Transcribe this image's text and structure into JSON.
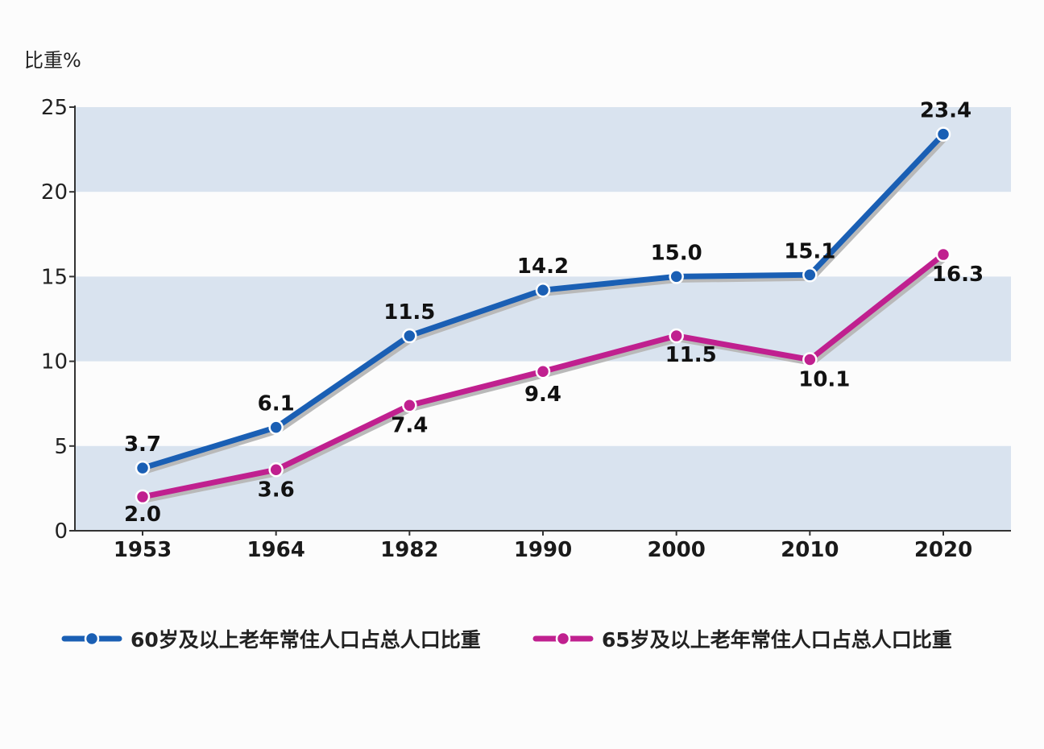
{
  "chart_data": {
    "type": "line",
    "title": "",
    "xlabel": "",
    "ylabel": "比重%",
    "ylim": [
      0,
      25
    ],
    "yticks": [
      0,
      5,
      10,
      15,
      20,
      25
    ],
    "grid": "alternating horizontal bands",
    "legend_position": "bottom",
    "categories": [
      "1953",
      "1964",
      "1982",
      "1990",
      "2000",
      "2010",
      "2020"
    ],
    "series": [
      {
        "name": "60岁及以上老年常住人口占总人口比重",
        "color": "#1a5fb4",
        "values": [
          3.7,
          6.1,
          11.5,
          14.2,
          15.0,
          15.1,
          23.4
        ],
        "labels": [
          "3.7",
          "6.1",
          "11.5",
          "14.2",
          "15.0",
          "15.1",
          "23.4"
        ]
      },
      {
        "name": "65岁及以上老年常住人口占总人口比重",
        "color": "#c0208f",
        "values": [
          2.0,
          3.6,
          7.4,
          9.4,
          11.5,
          10.1,
          16.3
        ],
        "labels": [
          "2.0",
          "3.6",
          "7.4",
          "9.4",
          "11.5",
          "10.1",
          "16.3"
        ]
      }
    ]
  },
  "colors": {
    "band": "#d9e3ef",
    "axis": "#333333"
  }
}
